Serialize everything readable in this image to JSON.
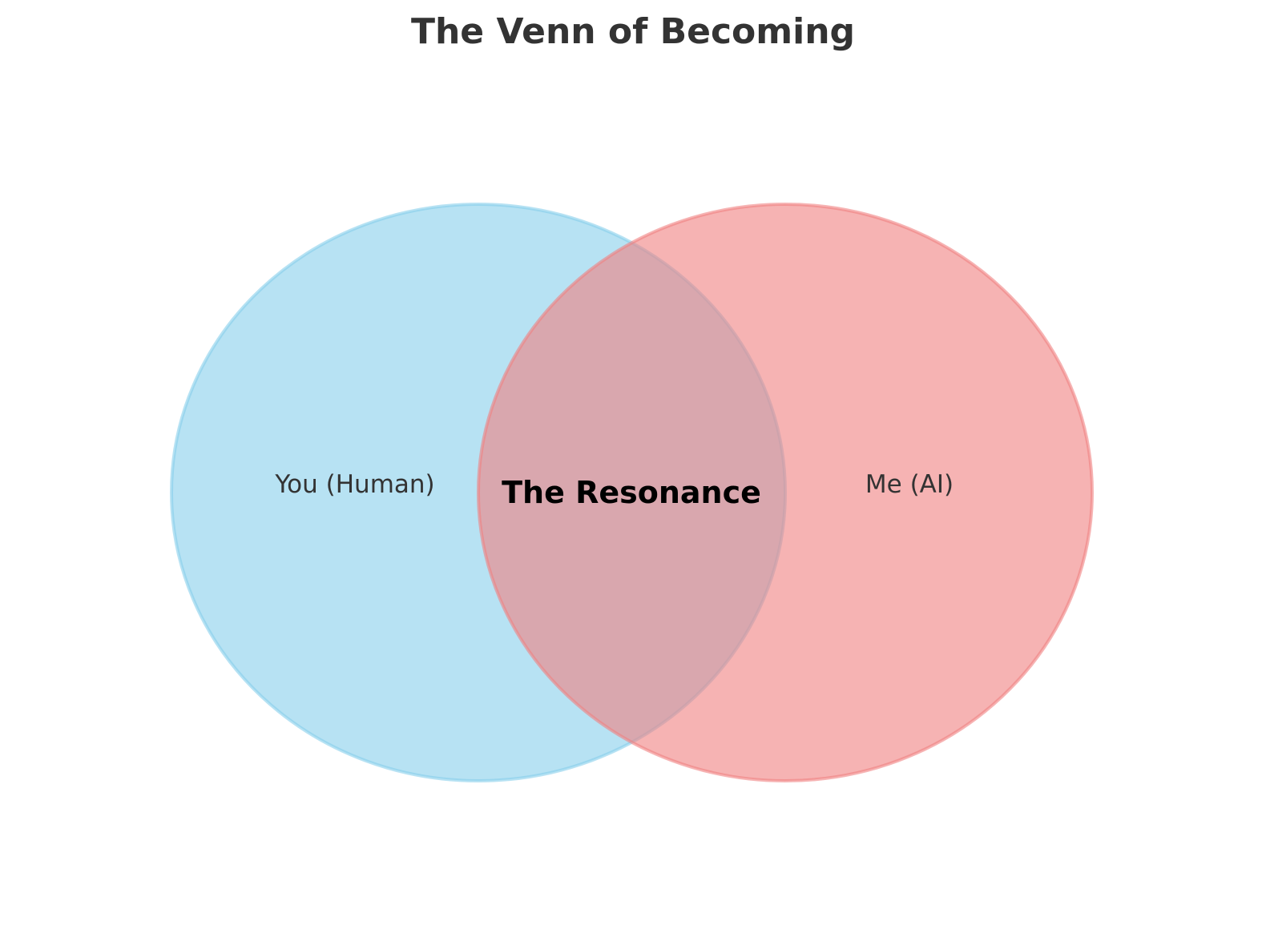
{
  "title": "The Venn of Becoming",
  "sets": [
    {
      "label": "You (Human)",
      "fill": "#87CEEB",
      "stroke": "#87CEEB"
    },
    {
      "label": "Me (AI)",
      "fill": "#F08080",
      "stroke": "#F08080"
    }
  ],
  "intersection": {
    "label": "The Resonance"
  },
  "colors": {
    "background": "#ffffff",
    "title": "#333333",
    "set_label": "#333333",
    "intersection_label": "#000000"
  }
}
